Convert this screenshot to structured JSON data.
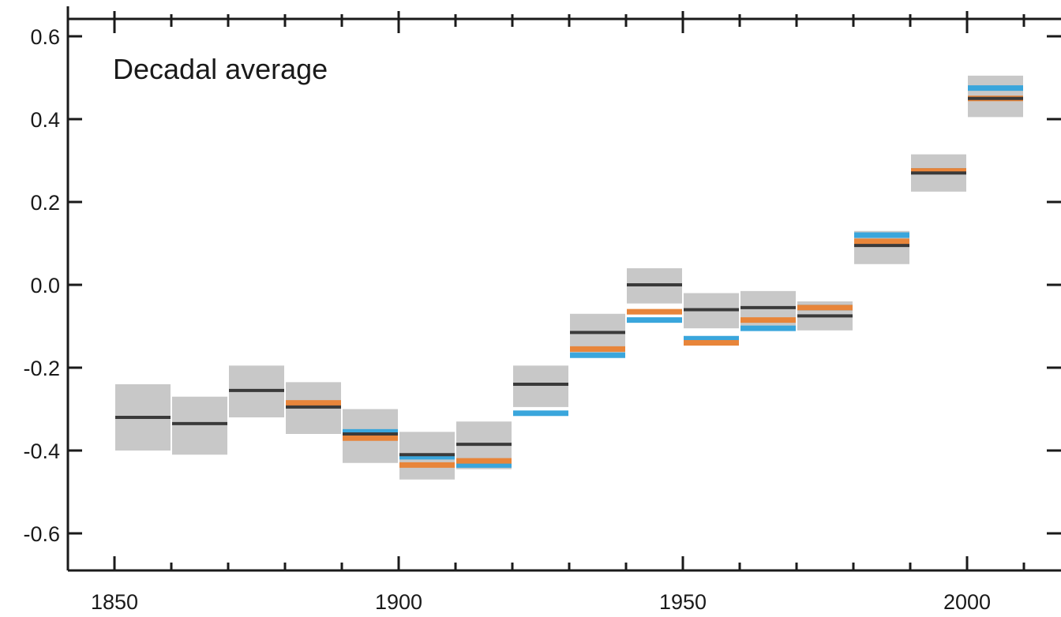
{
  "chart_data": {
    "type": "bar",
    "annotation": "Decadal average",
    "title": "",
    "xlabel": "",
    "ylabel": "",
    "xlim": [
      1840,
      2020
    ],
    "ylim": [
      -0.7,
      0.65
    ],
    "x_ticks": [
      1850,
      1900,
      1950,
      2000
    ],
    "y_ticks": [
      0.6,
      0.4,
      0.2,
      0.0,
      -0.2,
      -0.4,
      -0.6
    ],
    "y_tick_labels": [
      "0.6",
      "0.4",
      "0.2",
      "0.0",
      "-0.2",
      "-0.4",
      "-0.6"
    ],
    "grid": false,
    "colors": {
      "uncertainty": "#c8c8c8",
      "black_series": "#3a3a3a",
      "orange_series": "#e8853a",
      "blue_series": "#3aa6dc",
      "axis": "#1a1a1a"
    },
    "decades": [
      {
        "start": 1850,
        "end": 1860,
        "low": -0.4,
        "high": -0.24,
        "black": -0.32,
        "orange": null,
        "blue": null
      },
      {
        "start": 1860,
        "end": 1870,
        "low": -0.41,
        "high": -0.27,
        "black": -0.335,
        "orange": null,
        "blue": null
      },
      {
        "start": 1870,
        "end": 1880,
        "low": -0.32,
        "high": -0.195,
        "black": -0.255,
        "orange": null,
        "blue": null
      },
      {
        "start": 1880,
        "end": 1890,
        "low": -0.36,
        "high": -0.235,
        "black": -0.295,
        "orange": -0.285,
        "blue": -0.29
      },
      {
        "start": 1890,
        "end": 1900,
        "low": -0.43,
        "high": -0.3,
        "black": -0.36,
        "orange": -0.37,
        "blue": -0.355
      },
      {
        "start": 1900,
        "end": 1910,
        "low": -0.47,
        "high": -0.355,
        "black": -0.41,
        "orange": -0.435,
        "blue": -0.415
      },
      {
        "start": 1910,
        "end": 1920,
        "low": -0.445,
        "high": -0.33,
        "black": -0.385,
        "orange": -0.425,
        "blue": -0.435
      },
      {
        "start": 1920,
        "end": 1930,
        "low": -0.295,
        "high": -0.195,
        "black": -0.24,
        "orange": null,
        "blue": -0.31
      },
      {
        "start": 1930,
        "end": 1940,
        "low": -0.17,
        "high": -0.07,
        "black": -0.115,
        "orange": -0.155,
        "blue": -0.17
      },
      {
        "start": 1940,
        "end": 1950,
        "low": -0.045,
        "high": 0.04,
        "black": 0.0,
        "orange": -0.065,
        "blue": -0.085
      },
      {
        "start": 1950,
        "end": 1960,
        "low": -0.105,
        "high": -0.02,
        "black": -0.06,
        "orange": -0.14,
        "blue": -0.13
      },
      {
        "start": 1960,
        "end": 1970,
        "low": -0.1,
        "high": -0.015,
        "black": -0.055,
        "orange": -0.085,
        "blue": -0.105
      },
      {
        "start": 1970,
        "end": 1980,
        "low": -0.11,
        "high": -0.04,
        "black": -0.075,
        "orange": -0.055,
        "blue": -0.055
      },
      {
        "start": 1980,
        "end": 1990,
        "low": 0.05,
        "high": 0.13,
        "black": 0.095,
        "orange": 0.105,
        "blue": 0.12
      },
      {
        "start": 1990,
        "end": 2000,
        "low": 0.225,
        "high": 0.315,
        "black": 0.27,
        "orange": 0.275,
        "blue": 0.275
      },
      {
        "start": 2000,
        "end": 2010,
        "low": 0.405,
        "high": 0.505,
        "black": 0.45,
        "orange": 0.45,
        "blue": 0.475
      }
    ]
  }
}
